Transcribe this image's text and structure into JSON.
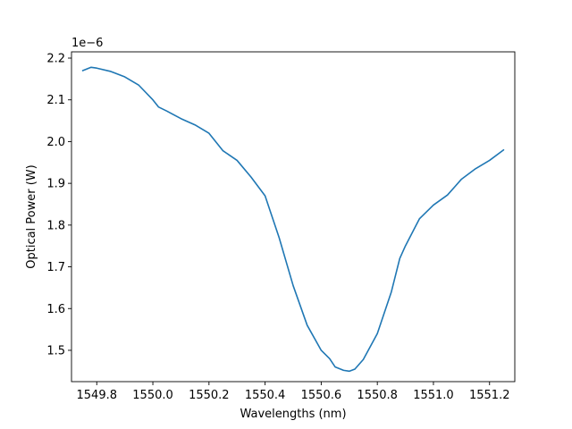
{
  "chart_data": {
    "type": "line",
    "xlabel": "Wavelengths (nm)",
    "ylabel": "Optical Power (W)",
    "y_offset_text": "1e−6",
    "xlim": [
      1549.71,
      1551.29
    ],
    "ylim": [
      1.425,
      2.215
    ],
    "xticks": [
      1549.8,
      1550.0,
      1550.2,
      1550.4,
      1550.6,
      1550.8,
      1551.0,
      1551.2
    ],
    "xtick_labels": [
      "1549.8",
      "1550.0",
      "1550.2",
      "1550.4",
      "1550.6",
      "1550.8",
      "1551.0",
      "1551.2"
    ],
    "yticks": [
      1.5,
      1.6,
      1.7,
      1.8,
      1.9,
      2.0,
      2.1,
      2.2
    ],
    "ytick_labels": [
      "1.5",
      "1.6",
      "1.7",
      "1.8",
      "1.9",
      "2.0",
      "2.1",
      "2.2"
    ],
    "grid": false,
    "line_color": "#1f77b4",
    "series": [
      {
        "x": [
          1549.75,
          1549.78,
          1549.8,
          1549.85,
          1549.9,
          1549.95,
          1550.0,
          1550.02,
          1550.05,
          1550.1,
          1550.15,
          1550.2,
          1550.25,
          1550.3,
          1550.35,
          1550.4,
          1550.42,
          1550.45,
          1550.5,
          1550.55,
          1550.6,
          1550.63,
          1550.65,
          1550.68,
          1550.7,
          1550.72,
          1550.75,
          1550.8,
          1550.85,
          1550.88,
          1550.9,
          1550.95,
          1551.0,
          1551.05,
          1551.1,
          1551.15,
          1551.2,
          1551.25
        ],
        "y": [
          2.17,
          2.178,
          2.176,
          2.168,
          2.155,
          2.135,
          2.1,
          2.083,
          2.073,
          2.055,
          2.04,
          2.02,
          1.978,
          1.955,
          1.915,
          1.87,
          1.83,
          1.77,
          1.655,
          1.56,
          1.5,
          1.48,
          1.46,
          1.452,
          1.45,
          1.455,
          1.478,
          1.54,
          1.64,
          1.72,
          1.75,
          1.815,
          1.848,
          1.872,
          1.91,
          1.935,
          1.955,
          1.98
        ]
      }
    ]
  }
}
